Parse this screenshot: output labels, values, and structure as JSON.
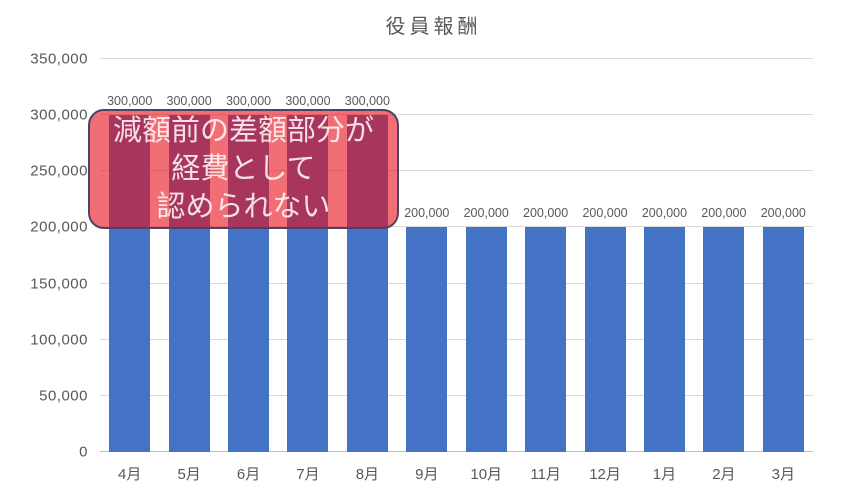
{
  "title": "役員報酬",
  "colors": {
    "bar": "#4472C4",
    "gridline": "#D9D9D9",
    "axis_line": "#BFBFBF",
    "label_text": "#595959",
    "annotation_fill": "rgba(233,13,25,0.60)",
    "annotation_border": "#4A4468",
    "annotation_text": "#FFF7F7"
  },
  "chart_data": {
    "type": "bar",
    "title": "役員報酬",
    "categories": [
      "4月",
      "5月",
      "6月",
      "7月",
      "8月",
      "9月",
      "10月",
      "11月",
      "12月",
      "1月",
      "2月",
      "3月"
    ],
    "values": [
      300000,
      300000,
      300000,
      300000,
      300000,
      200000,
      200000,
      200000,
      200000,
      200000,
      200000,
      200000
    ],
    "data_labels": [
      "300,000",
      "300,000",
      "300,000",
      "300,000",
      "300,000",
      "200,000",
      "200,000",
      "200,000",
      "200,000",
      "200,000",
      "200,000",
      "200,000"
    ],
    "xlabel": "",
    "ylabel": "",
    "ylim": [
      0,
      350000
    ],
    "ytick_step": 50000,
    "yticks": [
      "0",
      "50,000",
      "100,000",
      "150,000",
      "200,000",
      "250,000",
      "300,000",
      "350,000"
    ],
    "grid": true,
    "legend": false
  },
  "annotation": {
    "text": "減額前の差額部分が経費として認められない",
    "lines": [
      "減額前の差額部分が",
      "経費として",
      "認められない"
    ]
  }
}
